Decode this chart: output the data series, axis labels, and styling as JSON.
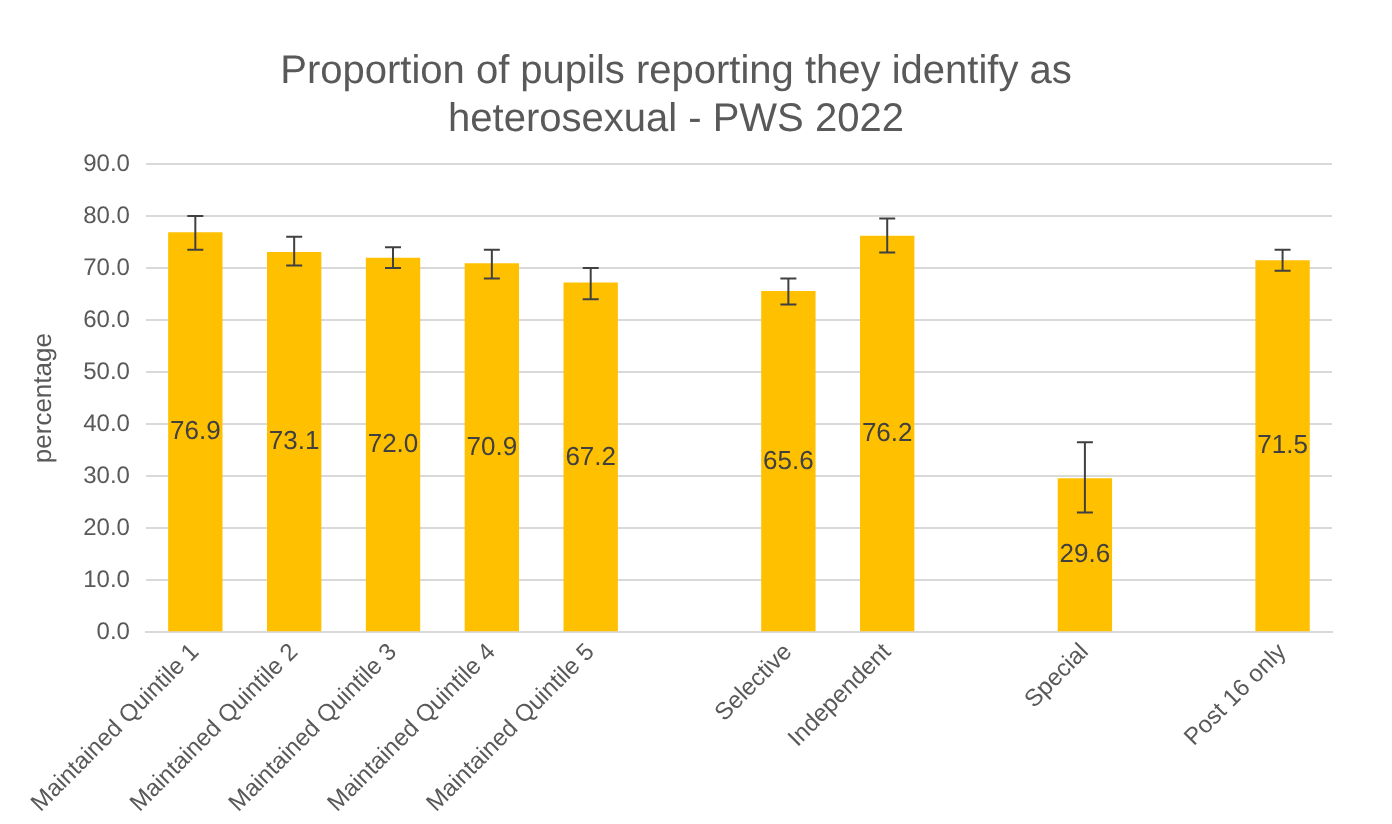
{
  "chart_data": {
    "type": "bar",
    "title": "Proportion of pupils reporting they identify as heterosexual - PWS 2022",
    "ylabel": "percentage",
    "categories": [
      "Maintained Quintile 1",
      "Maintained Quintile 2",
      "Maintained Quintile 3",
      "Maintained Quintile 4",
      "Maintained Quintile 5",
      null,
      "Selective",
      "Independent",
      null,
      "Special",
      null,
      "Post 16 only"
    ],
    "values": [
      76.9,
      73.1,
      72.0,
      70.9,
      67.2,
      null,
      65.6,
      76.2,
      null,
      29.6,
      null,
      71.5
    ],
    "errors": [
      [
        73.5,
        80.0
      ],
      [
        70.5,
        76.0
      ],
      [
        70.0,
        74.0
      ],
      [
        68.0,
        73.5
      ],
      [
        64.0,
        70.0
      ],
      null,
      [
        63.0,
        68.0
      ],
      [
        73.0,
        79.5
      ],
      null,
      [
        23.0,
        36.5
      ],
      null,
      [
        69.5,
        73.5
      ]
    ],
    "value_labels": [
      "76.9",
      "73.1",
      "72.0",
      "70.9",
      "67.2",
      null,
      "65.6",
      "76.2",
      null,
      "29.6",
      null,
      "71.5"
    ],
    "color": "#ffc000",
    "ylim": [
      0,
      90
    ],
    "yticks": [
      {
        "value": 0,
        "label": "0.0"
      },
      {
        "value": 10,
        "label": "10.0"
      },
      {
        "value": 20,
        "label": "20.0"
      },
      {
        "value": 30,
        "label": "30.0"
      },
      {
        "value": 40,
        "label": "40.0"
      },
      {
        "value": 50,
        "label": "50.0"
      },
      {
        "value": 60,
        "label": "60.0"
      },
      {
        "value": 70,
        "label": "70.0"
      },
      {
        "value": 80,
        "label": "80.0"
      },
      {
        "value": 90,
        "label": "90.0"
      }
    ],
    "grid": "y",
    "legend": false
  }
}
